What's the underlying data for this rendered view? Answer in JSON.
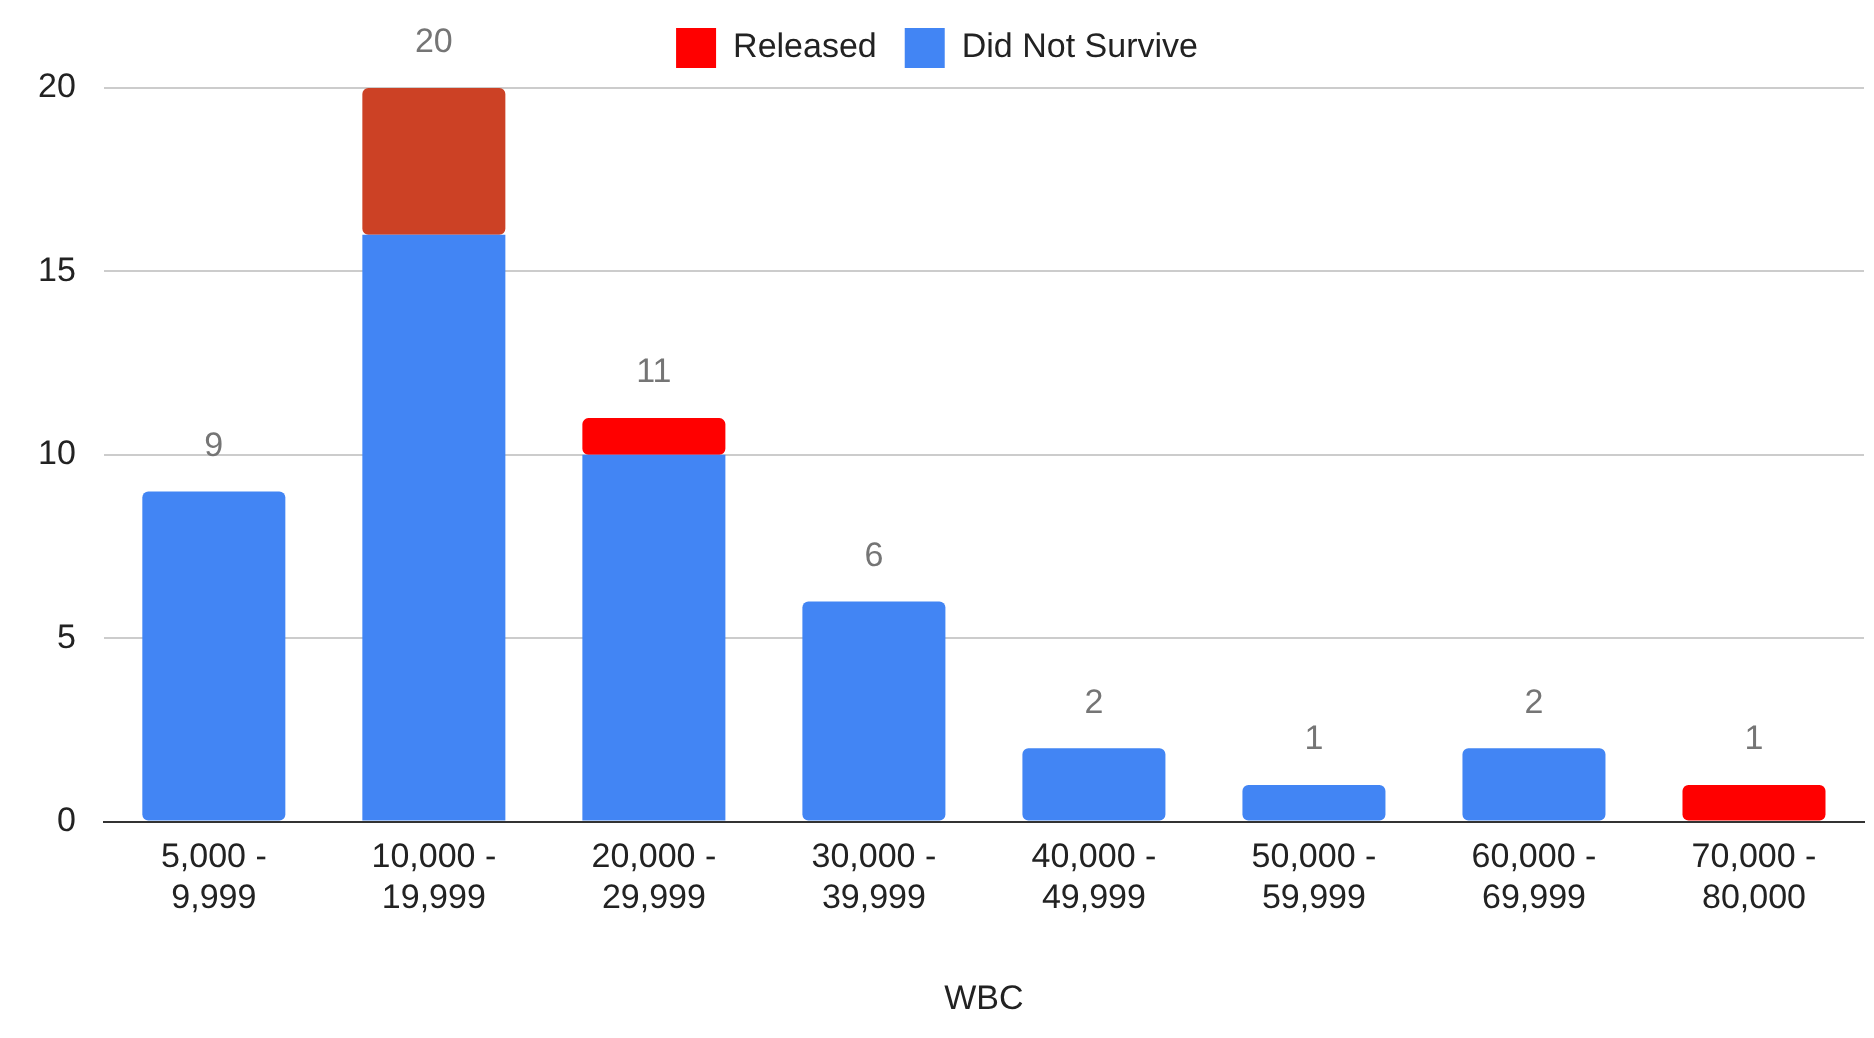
{
  "chart_data": {
    "type": "bar",
    "xlabel": "WBC",
    "stacked": true,
    "categories": [
      "5,000 - 9,999",
      "10,000 - 19,999",
      "20,000 - 29,999",
      "30,000 - 39,999",
      "40,000 - 49,999",
      "50,000 - 59,999",
      "60,000 - 69,999",
      "70,000 - 80,000"
    ],
    "series": [
      {
        "name": "Did Not Survive",
        "color": "#4285f4",
        "values": [
          9,
          16,
          10,
          6,
          2,
          1,
          2,
          0
        ]
      },
      {
        "name": "Released",
        "color": "#ff0000",
        "colors": [
          "#ff0000",
          "#cc4125",
          "#ff0000",
          "#ff0000",
          "#ff0000",
          "#ff0000",
          "#ff0000",
          "#ff0000"
        ],
        "values": [
          0,
          4,
          1,
          0,
          0,
          0,
          0,
          1
        ]
      }
    ],
    "totals": [
      "9",
      "20",
      "11",
      "6",
      "2",
      "1",
      "2",
      "1"
    ],
    "ylim": [
      0,
      20
    ],
    "yticks": [
      0,
      5,
      10,
      15,
      20
    ],
    "grid": "y",
    "legend": "top"
  }
}
